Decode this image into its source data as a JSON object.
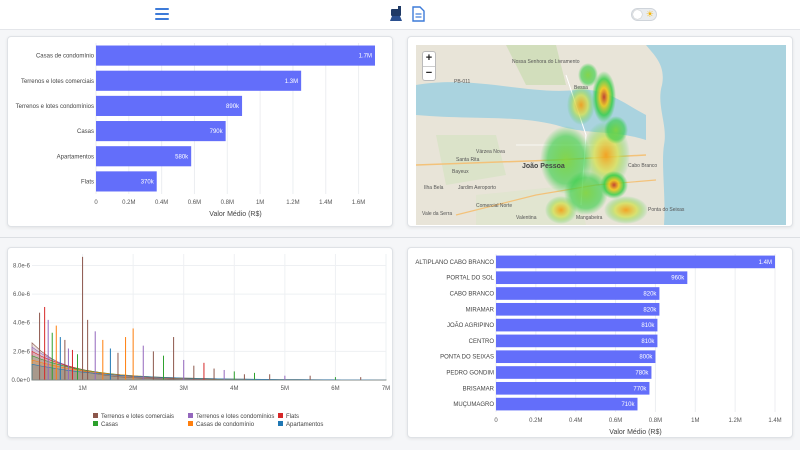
{
  "header": {
    "menu_icon": "hamburger-menu-icon",
    "icons": [
      "broom-icon",
      "document-icon"
    ],
    "theme_toggle_icon": "sun-icon"
  },
  "colors": {
    "bar": "#636efa",
    "accent": "#3d7bd9",
    "water": "#aad3df"
  },
  "chart_data": [
    {
      "type": "bar",
      "orientation": "horizontal",
      "categories": [
        "Casas de condomínio",
        "Terrenos e lotes comerciais",
        "Terrenos e lotes condomínios",
        "Casas",
        "Apartamentos",
        "Flats"
      ],
      "values": [
        1700000,
        1250000,
        890000,
        790000,
        580000,
        370000
      ],
      "data_labels": [
        "1.7M",
        "1.3M",
        "890k",
        "790k",
        "580k",
        "370k"
      ],
      "xlabel": "Valor Médio (R$)",
      "xlim": [
        0,
        1700000
      ],
      "xticks": [
        0,
        200000,
        400000,
        600000,
        800000,
        1000000,
        1200000,
        1400000,
        1600000
      ],
      "xtick_labels": [
        "0",
        "0.2M",
        "0.4M",
        "0.6M",
        "0.8M",
        "1M",
        "1.2M",
        "1.4M",
        "1.6M"
      ],
      "grid": true
    },
    {
      "type": "area",
      "series": [
        {
          "name": "Terrenos e lotes comerciais",
          "color": "#8c564b"
        },
        {
          "name": "Terrenos e lotes condomínios",
          "color": "#9467bd"
        },
        {
          "name": "Flats",
          "color": "#d62728"
        },
        {
          "name": "Casas",
          "color": "#2ca02c"
        },
        {
          "name": "Casas de condomínio",
          "color": "#ff7f0e"
        },
        {
          "name": "Apartamentos",
          "color": "#1f77b4"
        }
      ],
      "yticks": [
        "0.0e+0",
        "2.0e-6",
        "4.0e-6",
        "6.0e-6",
        "8.0e-6"
      ],
      "xticks": [
        "1M",
        "2M",
        "3M",
        "4M",
        "5M",
        "6M",
        "7M"
      ],
      "xlim": [
        0,
        7000000
      ],
      "ylim": [
        0,
        8.8e-06
      ],
      "legend": "bottom",
      "spikes": [
        {
          "x": 150000,
          "y": 4.7e-06,
          "s": 0
        },
        {
          "x": 250000,
          "y": 5.1e-06,
          "s": 2
        },
        {
          "x": 320000,
          "y": 4.2e-06,
          "s": 1
        },
        {
          "x": 400000,
          "y": 3.3e-06,
          "s": 3
        },
        {
          "x": 480000,
          "y": 3.8e-06,
          "s": 4
        },
        {
          "x": 560000,
          "y": 3e-06,
          "s": 5
        },
        {
          "x": 650000,
          "y": 2.8e-06,
          "s": 0
        },
        {
          "x": 720000,
          "y": 2.2e-06,
          "s": 1
        },
        {
          "x": 800000,
          "y": 2.1e-06,
          "s": 2
        },
        {
          "x": 900000,
          "y": 1.8e-06,
          "s": 3
        },
        {
          "x": 1000000,
          "y": 8.6e-06,
          "s": 0
        },
        {
          "x": 1100000,
          "y": 4.2e-06,
          "s": 0
        },
        {
          "x": 1250000,
          "y": 3.4e-06,
          "s": 1
        },
        {
          "x": 1400000,
          "y": 2.8e-06,
          "s": 4
        },
        {
          "x": 1550000,
          "y": 2.2e-06,
          "s": 5
        },
        {
          "x": 1700000,
          "y": 1.9e-06,
          "s": 0
        },
        {
          "x": 1850000,
          "y": 3e-06,
          "s": 4
        },
        {
          "x": 2000000,
          "y": 3.6e-06,
          "s": 4
        },
        {
          "x": 2200000,
          "y": 2.4e-06,
          "s": 1
        },
        {
          "x": 2400000,
          "y": 2e-06,
          "s": 0
        },
        {
          "x": 2600000,
          "y": 1.7e-06,
          "s": 3
        },
        {
          "x": 2800000,
          "y": 3e-06,
          "s": 0
        },
        {
          "x": 3000000,
          "y": 1.4e-06,
          "s": 1
        },
        {
          "x": 3200000,
          "y": 1e-06,
          "s": 0
        },
        {
          "x": 3400000,
          "y": 1.2e-06,
          "s": 2
        },
        {
          "x": 3600000,
          "y": 8e-07,
          "s": 0
        },
        {
          "x": 3800000,
          "y": 7e-07,
          "s": 1
        },
        {
          "x": 4000000,
          "y": 6e-07,
          "s": 3
        },
        {
          "x": 4200000,
          "y": 4e-07,
          "s": 0
        },
        {
          "x": 4400000,
          "y": 5e-07,
          "s": 3
        },
        {
          "x": 4700000,
          "y": 4e-07,
          "s": 0
        },
        {
          "x": 5000000,
          "y": 3e-07,
          "s": 1
        },
        {
          "x": 5500000,
          "y": 3e-07,
          "s": 0
        },
        {
          "x": 6000000,
          "y": 2e-07,
          "s": 3
        },
        {
          "x": 6500000,
          "y": 2e-07,
          "s": 0
        }
      ]
    },
    {
      "type": "bar",
      "orientation": "horizontal",
      "categories": [
        "ALTIPLANO CABO BRANCO",
        "PORTAL DO SOL",
        "CABO BRANCO",
        "MIRAMAR",
        "JOÃO AGRIPINO",
        "CENTRO",
        "PONTA DO SEIXAS",
        "PEDRO GONDIM",
        "BRISAMAR",
        "MUÇUMAGRO"
      ],
      "values": [
        1400000,
        960000,
        820000,
        820000,
        810000,
        810000,
        800000,
        780000,
        770000,
        710000
      ],
      "data_labels": [
        "1.4M",
        "960k",
        "820k",
        "820k",
        "810k",
        "810k",
        "800k",
        "780k",
        "770k",
        "710k"
      ],
      "xlabel": "Valor Médio (R$)",
      "xlim": [
        0,
        1400000
      ],
      "xticks": [
        0,
        200000,
        400000,
        600000,
        800000,
        1000000,
        1200000,
        1400000
      ],
      "xtick_labels": [
        "0",
        "0.2M",
        "0.4M",
        "0.6M",
        "0.8M",
        "1M",
        "1.2M",
        "1.4M"
      ],
      "grid": true
    }
  ],
  "map": {
    "zoom_in": "+",
    "zoom_out": "−",
    "labels": [
      "Nossa Senhora do Livramento",
      "Santa Rita",
      "Bayeux",
      "João Pessoa",
      "Várzea Nova",
      "Jardim Aeroporto",
      "Comercial Norte",
      "Valentina",
      "PB-011",
      "Mangabeira",
      "Cabo Branco",
      "Bessa",
      "Ponta do Seixas",
      "Vale da Serra",
      "Ilha Bela"
    ]
  }
}
